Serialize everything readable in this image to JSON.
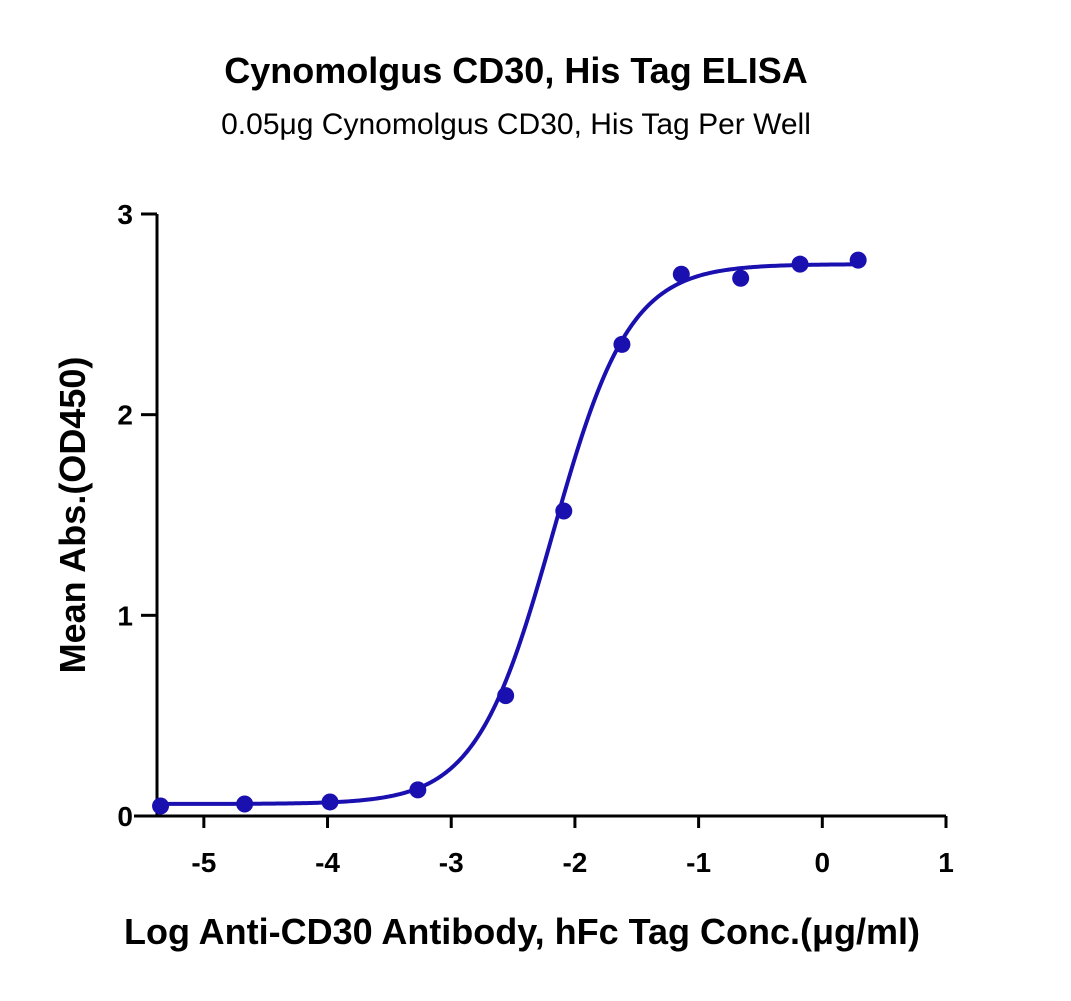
{
  "chart_data": {
    "type": "scatter",
    "title": "Cynomolgus CD30, His Tag ELISA",
    "subtitle": "0.05μg Cynomolgus CD30, His Tag Per Well",
    "xlabel": "Log Anti-CD30 Antibody, hFc Tag Conc.(μg/ml)",
    "ylabel": "Mean Abs.(OD450)",
    "xlim": [
      -5.5,
      1
    ],
    "ylim": [
      0,
      3
    ],
    "x_ticks": [
      "-5",
      "-4",
      "-3",
      "-2",
      "-1",
      "0",
      "1"
    ],
    "y_ticks": [
      "0",
      "1",
      "2",
      "3"
    ],
    "grid": false,
    "series": [
      {
        "color": "#1a10b0",
        "points": [
          {
            "x": -5.35,
            "y": 0.05
          },
          {
            "x": -4.67,
            "y": 0.06
          },
          {
            "x": -3.98,
            "y": 0.07
          },
          {
            "x": -3.27,
            "y": 0.13
          },
          {
            "x": -2.56,
            "y": 0.6
          },
          {
            "x": -2.09,
            "y": 1.52
          },
          {
            "x": -1.62,
            "y": 2.35
          },
          {
            "x": -1.14,
            "y": 2.7
          },
          {
            "x": -0.66,
            "y": 2.68
          },
          {
            "x": -0.18,
            "y": 2.75
          },
          {
            "x": 0.29,
            "y": 2.77
          }
        ],
        "fit": {
          "model": "4PL",
          "bottom": 0.06,
          "top": 2.75,
          "logEC50": -2.18,
          "hill": 1.4,
          "x_range": [
            -5.35,
            0.29
          ]
        }
      }
    ]
  }
}
